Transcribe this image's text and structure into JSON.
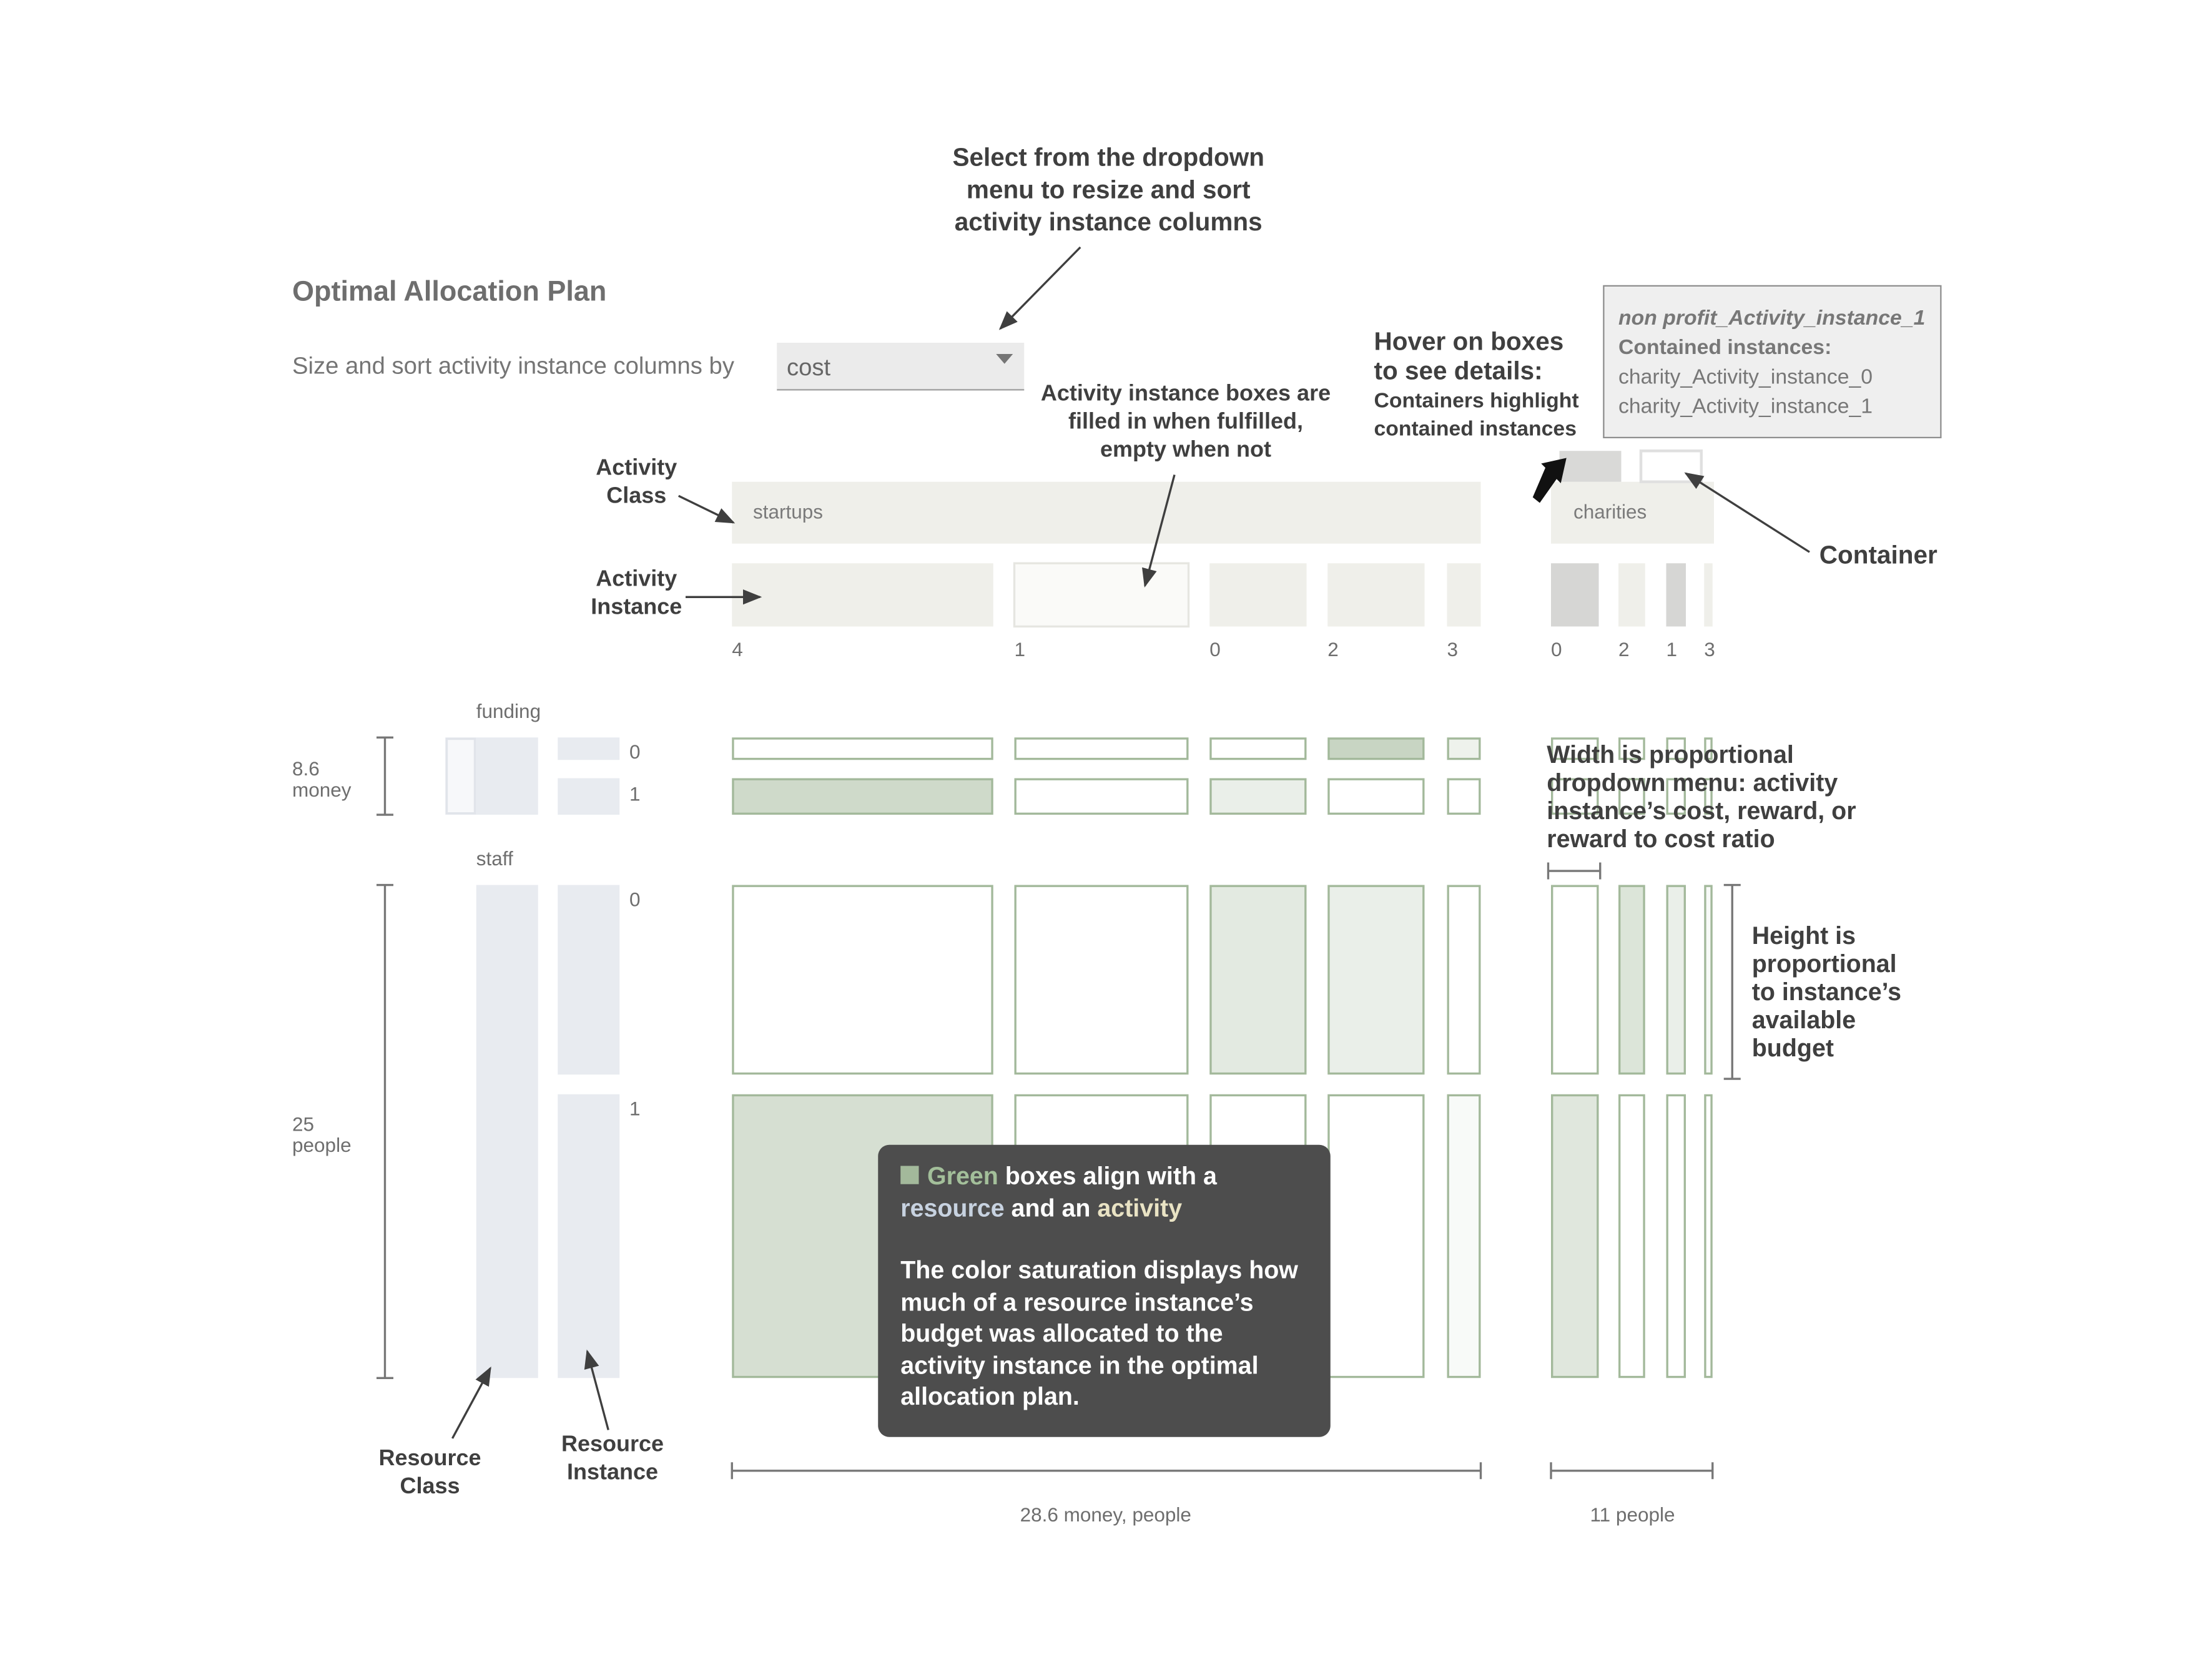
{
  "title": "Optimal Allocation Plan",
  "size_sort_label": "Size and sort activity instance columns by",
  "dropdown": {
    "selected": "cost"
  },
  "tooltip": {
    "title": "non profit_Activity_instance_1",
    "subtitle": "Contained instances:",
    "items": [
      "charity_Activity_instance_0",
      "charity_Activity_instance_1"
    ]
  },
  "annotations": {
    "dropdown_hint": [
      "Select from the dropdown",
      "menu to resize and sort",
      "activity instance columns"
    ],
    "fill_hint": [
      "Activity instance boxes are",
      "filled in when fulfilled,",
      "empty when not"
    ],
    "hover_head": [
      "Hover on boxes",
      "to see details:"
    ],
    "hover_sub": [
      "Containers highlight",
      "contained instances"
    ],
    "activity_class": [
      "Activity",
      "Class"
    ],
    "activity_instance": [
      "Activity",
      "Instance"
    ],
    "container": "Container",
    "width_hint": [
      "Width is proportional",
      "dropdown menu: activity",
      "instance’s cost, reward, or",
      "reward to cost ratio"
    ],
    "height_hint": [
      "Height is",
      "proportional",
      "to instance’s",
      "available",
      "budget"
    ],
    "resource_class": [
      "Resource",
      "Class"
    ],
    "resource_instance": [
      "Resource",
      "Instance"
    ]
  },
  "callout": {
    "w_green": "Green",
    "w_align": " boxes align with a",
    "w_resource": "resource",
    "w_and": " and an ",
    "w_activity": "activity",
    "paragraph": [
      "The color saturation displays how",
      "much of a resource instance’s",
      "budget was allocated to the",
      "activity instance in the optimal",
      "allocation plan."
    ]
  },
  "activity_classes": [
    {
      "name": "startups",
      "total_label": "28.6 money, people",
      "instances": [
        "4",
        "1",
        "0",
        "2",
        "3"
      ]
    },
    {
      "name": "charities",
      "total_label": "11 people",
      "instances": [
        "0",
        "2",
        "1",
        "3"
      ]
    }
  ],
  "resource_classes": [
    {
      "name": "funding",
      "amount": "8.6",
      "unit": "money",
      "instances": [
        "0",
        "1"
      ]
    },
    {
      "name": "staff",
      "amount": "25",
      "unit": "people",
      "instances": [
        "0",
        "1"
      ]
    }
  ],
  "allocation_fill": {
    "funding_0": [
      0,
      0,
      0,
      0.8,
      0.25,
      0,
      0,
      0,
      0
    ],
    "funding_1": [
      0.7,
      0,
      0.3,
      0,
      0,
      0,
      0,
      0,
      0
    ],
    "staff_0": [
      0,
      0,
      0.4,
      0.3,
      0,
      0,
      0.5,
      0.3,
      0.1
    ],
    "staff_1": [
      0.6,
      0,
      0,
      0,
      0.1,
      0.45,
      0,
      0,
      0
    ]
  },
  "colors": {
    "accent_green": "#a3b99b",
    "resource_blue": "#e8ebf0",
    "activity_beige": "#efefea",
    "callout_bg": "#4d4d4d"
  }
}
